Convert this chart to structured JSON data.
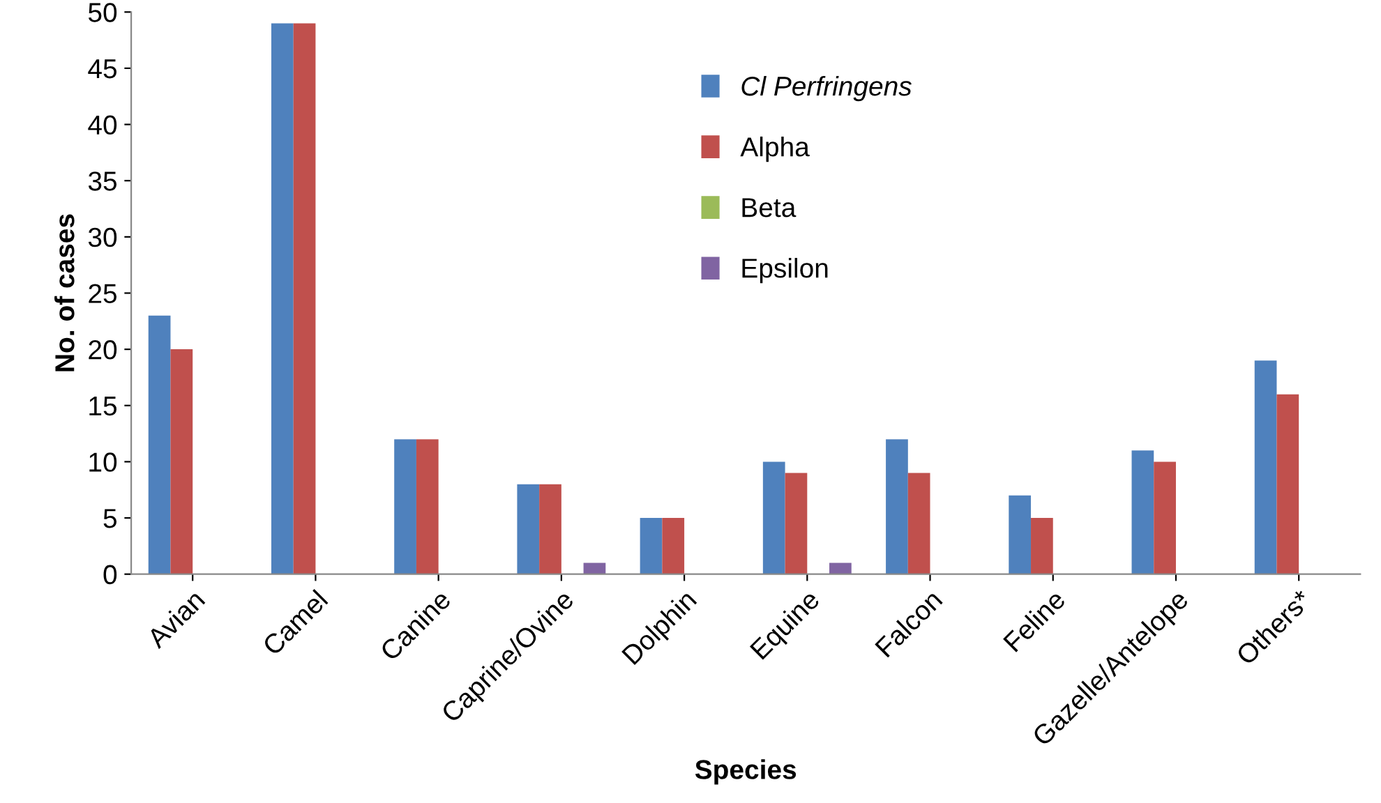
{
  "chart_data": {
    "type": "bar",
    "xlabel": "Species",
    "ylabel": "No. of cases",
    "categories": [
      "Avian",
      "Camel",
      "Canine",
      "Caprine/Ovine",
      "Dolphin",
      "Equine",
      "Falcon",
      "Feline",
      "Gazelle/Antelope",
      "Others*"
    ],
    "series": [
      {
        "name": "Cl Perfringens",
        "color": "#4f81bd",
        "values": [
          23,
          49,
          12,
          8,
          5,
          10,
          12,
          7,
          11,
          19
        ]
      },
      {
        "name": "Alpha",
        "color": "#c0504d",
        "values": [
          20,
          49,
          12,
          8,
          5,
          9,
          9,
          5,
          10,
          16
        ]
      },
      {
        "name": "Beta",
        "color": "#9bbb59",
        "values": [
          0,
          0,
          0,
          0,
          0,
          0,
          0,
          0,
          0,
          0
        ]
      },
      {
        "name": "Epsilon",
        "color": "#8064a2",
        "values": [
          0,
          0,
          0,
          1,
          0,
          1,
          0,
          0,
          0,
          0
        ]
      }
    ],
    "ylim": [
      0,
      50
    ],
    "yticks": [
      0,
      5,
      10,
      15,
      20,
      25,
      30,
      35,
      40,
      45,
      50
    ],
    "grid": false,
    "legend": "top"
  }
}
